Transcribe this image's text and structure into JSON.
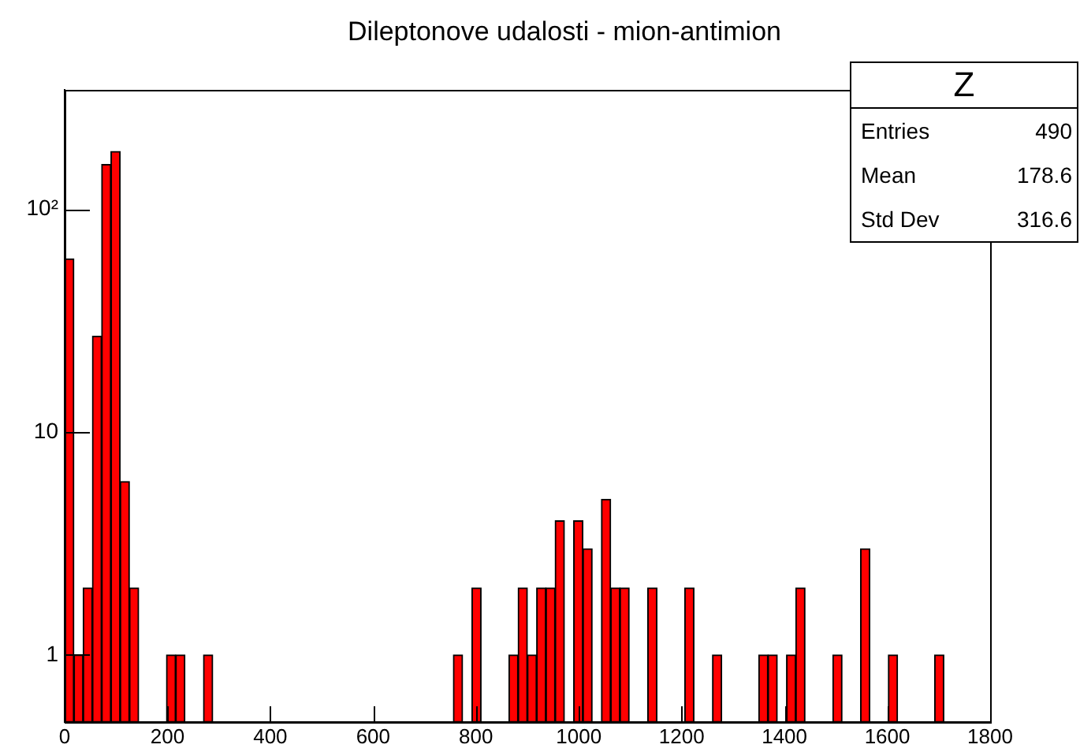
{
  "chart_data": {
    "type": "histogram",
    "title": "Dileptonove udalosti - mion-antimion",
    "bins": [
      0,
      18,
      36,
      54,
      72,
      90,
      108,
      126,
      144,
      162,
      180,
      198,
      216,
      234,
      252,
      270,
      288,
      306,
      324,
      342,
      360,
      378,
      396,
      414,
      432,
      450,
      468,
      486,
      504,
      522,
      540,
      558,
      576,
      594,
      612,
      630,
      648,
      666,
      684,
      702,
      720,
      738,
      756,
      774,
      792,
      810,
      828,
      846,
      864,
      882,
      900,
      918,
      936,
      954,
      972,
      990,
      1008,
      1026,
      1044,
      1062,
      1080,
      1098,
      1116,
      1134,
      1152,
      1170,
      1188,
      1206,
      1224,
      1242,
      1260,
      1278,
      1296,
      1314,
      1332,
      1350,
      1368,
      1386,
      1404,
      1422,
      1440,
      1458,
      1476,
      1494,
      1512,
      1530,
      1548,
      1566,
      1584,
      1602,
      1620,
      1638,
      1656,
      1674,
      1692,
      1710,
      1728,
      1746,
      1764,
      1782,
      1800
    ],
    "values": [
      60,
      1,
      2,
      27,
      159,
      182,
      6,
      2,
      null,
      null,
      null,
      1,
      1,
      null,
      null,
      1,
      null,
      null,
      null,
      null,
      null,
      null,
      null,
      null,
      null,
      null,
      null,
      null,
      null,
      null,
      null,
      null,
      null,
      null,
      null,
      null,
      null,
      null,
      null,
      null,
      null,
      null,
      1,
      null,
      2,
      null,
      null,
      null,
      1,
      2,
      1,
      2,
      2,
      4,
      null,
      4,
      3,
      null,
      5,
      2,
      2,
      null,
      null,
      2,
      null,
      null,
      null,
      2,
      null,
      null,
      1,
      null,
      null,
      null,
      null,
      1,
      1,
      null,
      1,
      2,
      null,
      null,
      null,
      1,
      null,
      null,
      3,
      null,
      null,
      1,
      null,
      null,
      null,
      null,
      1,
      null,
      null,
      null,
      null,
      null
    ],
    "color": "#ff0000",
    "log": "y",
    "xlim": [
      0,
      1800
    ],
    "ylim": [
      0.5,
      344
    ],
    "xticks": [
      0,
      200,
      400,
      600,
      800,
      1000,
      1200,
      1400,
      1600,
      1800
    ],
    "yticks": [
      1,
      10,
      {
        "value": 100,
        "label": "10²"
      }
    ],
    "grid": false,
    "legend": false,
    "annotations": [
      "Z",
      "Entries",
      "490",
      "Mean",
      "178.6",
      "Std Dev",
      "316.6"
    ]
  }
}
